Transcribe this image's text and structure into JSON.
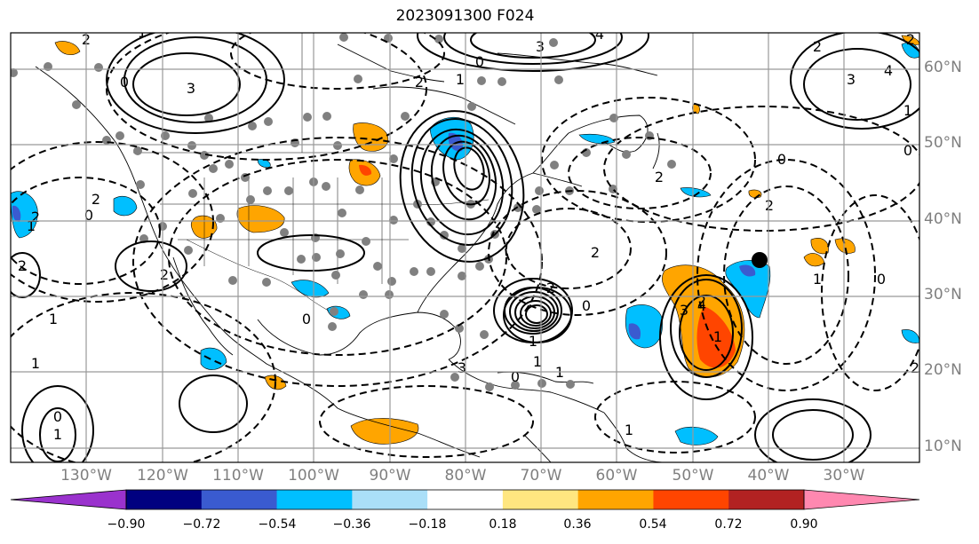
{
  "title": "2023091300 F024",
  "lat_labels": [
    "60°N",
    "50°N",
    "40°N",
    "30°N",
    "20°N",
    "10°N"
  ],
  "lon_labels": [
    "130°W",
    "120°W",
    "110°W",
    "100°W",
    "90°W",
    "80°W",
    "70°W",
    "60°W",
    "50°W",
    "40°W",
    "30°W"
  ],
  "colorbar": {
    "ticks": [
      "−0.90",
      "−0.72",
      "−0.54",
      "−0.36",
      "−0.18",
      "0.18",
      "0.36",
      "0.54",
      "0.72",
      "0.90"
    ],
    "colors": [
      "#9a32cd",
      "#000080",
      "#3a5bd0",
      "#00bfff",
      "#aadff8",
      "#ffffff",
      "#ffe680",
      "#ffa500",
      "#ff4500",
      "#b22222",
      "#ff88b0"
    ]
  },
  "contour_labels": [
    "2",
    "1",
    "3",
    "3",
    "0",
    "2",
    "1",
    "3",
    "4",
    "0",
    "2",
    "3",
    "4",
    "1",
    "2",
    "2",
    "0",
    "2",
    "1",
    "0",
    "2",
    "2",
    "0",
    "2",
    "1",
    "1",
    "1",
    "0",
    "2",
    "1",
    "3",
    "4",
    "1",
    "2",
    "1",
    "0",
    "2",
    "0",
    "1",
    "2",
    "0",
    "1",
    "2",
    "0",
    "1"
  ],
  "colors": {
    "positive_shade": "#ffa500",
    "positive_core": "#ff4500",
    "negative_shade": "#00bfff",
    "negative_core": "#3a5bd0",
    "station_dot": "#808080"
  }
}
